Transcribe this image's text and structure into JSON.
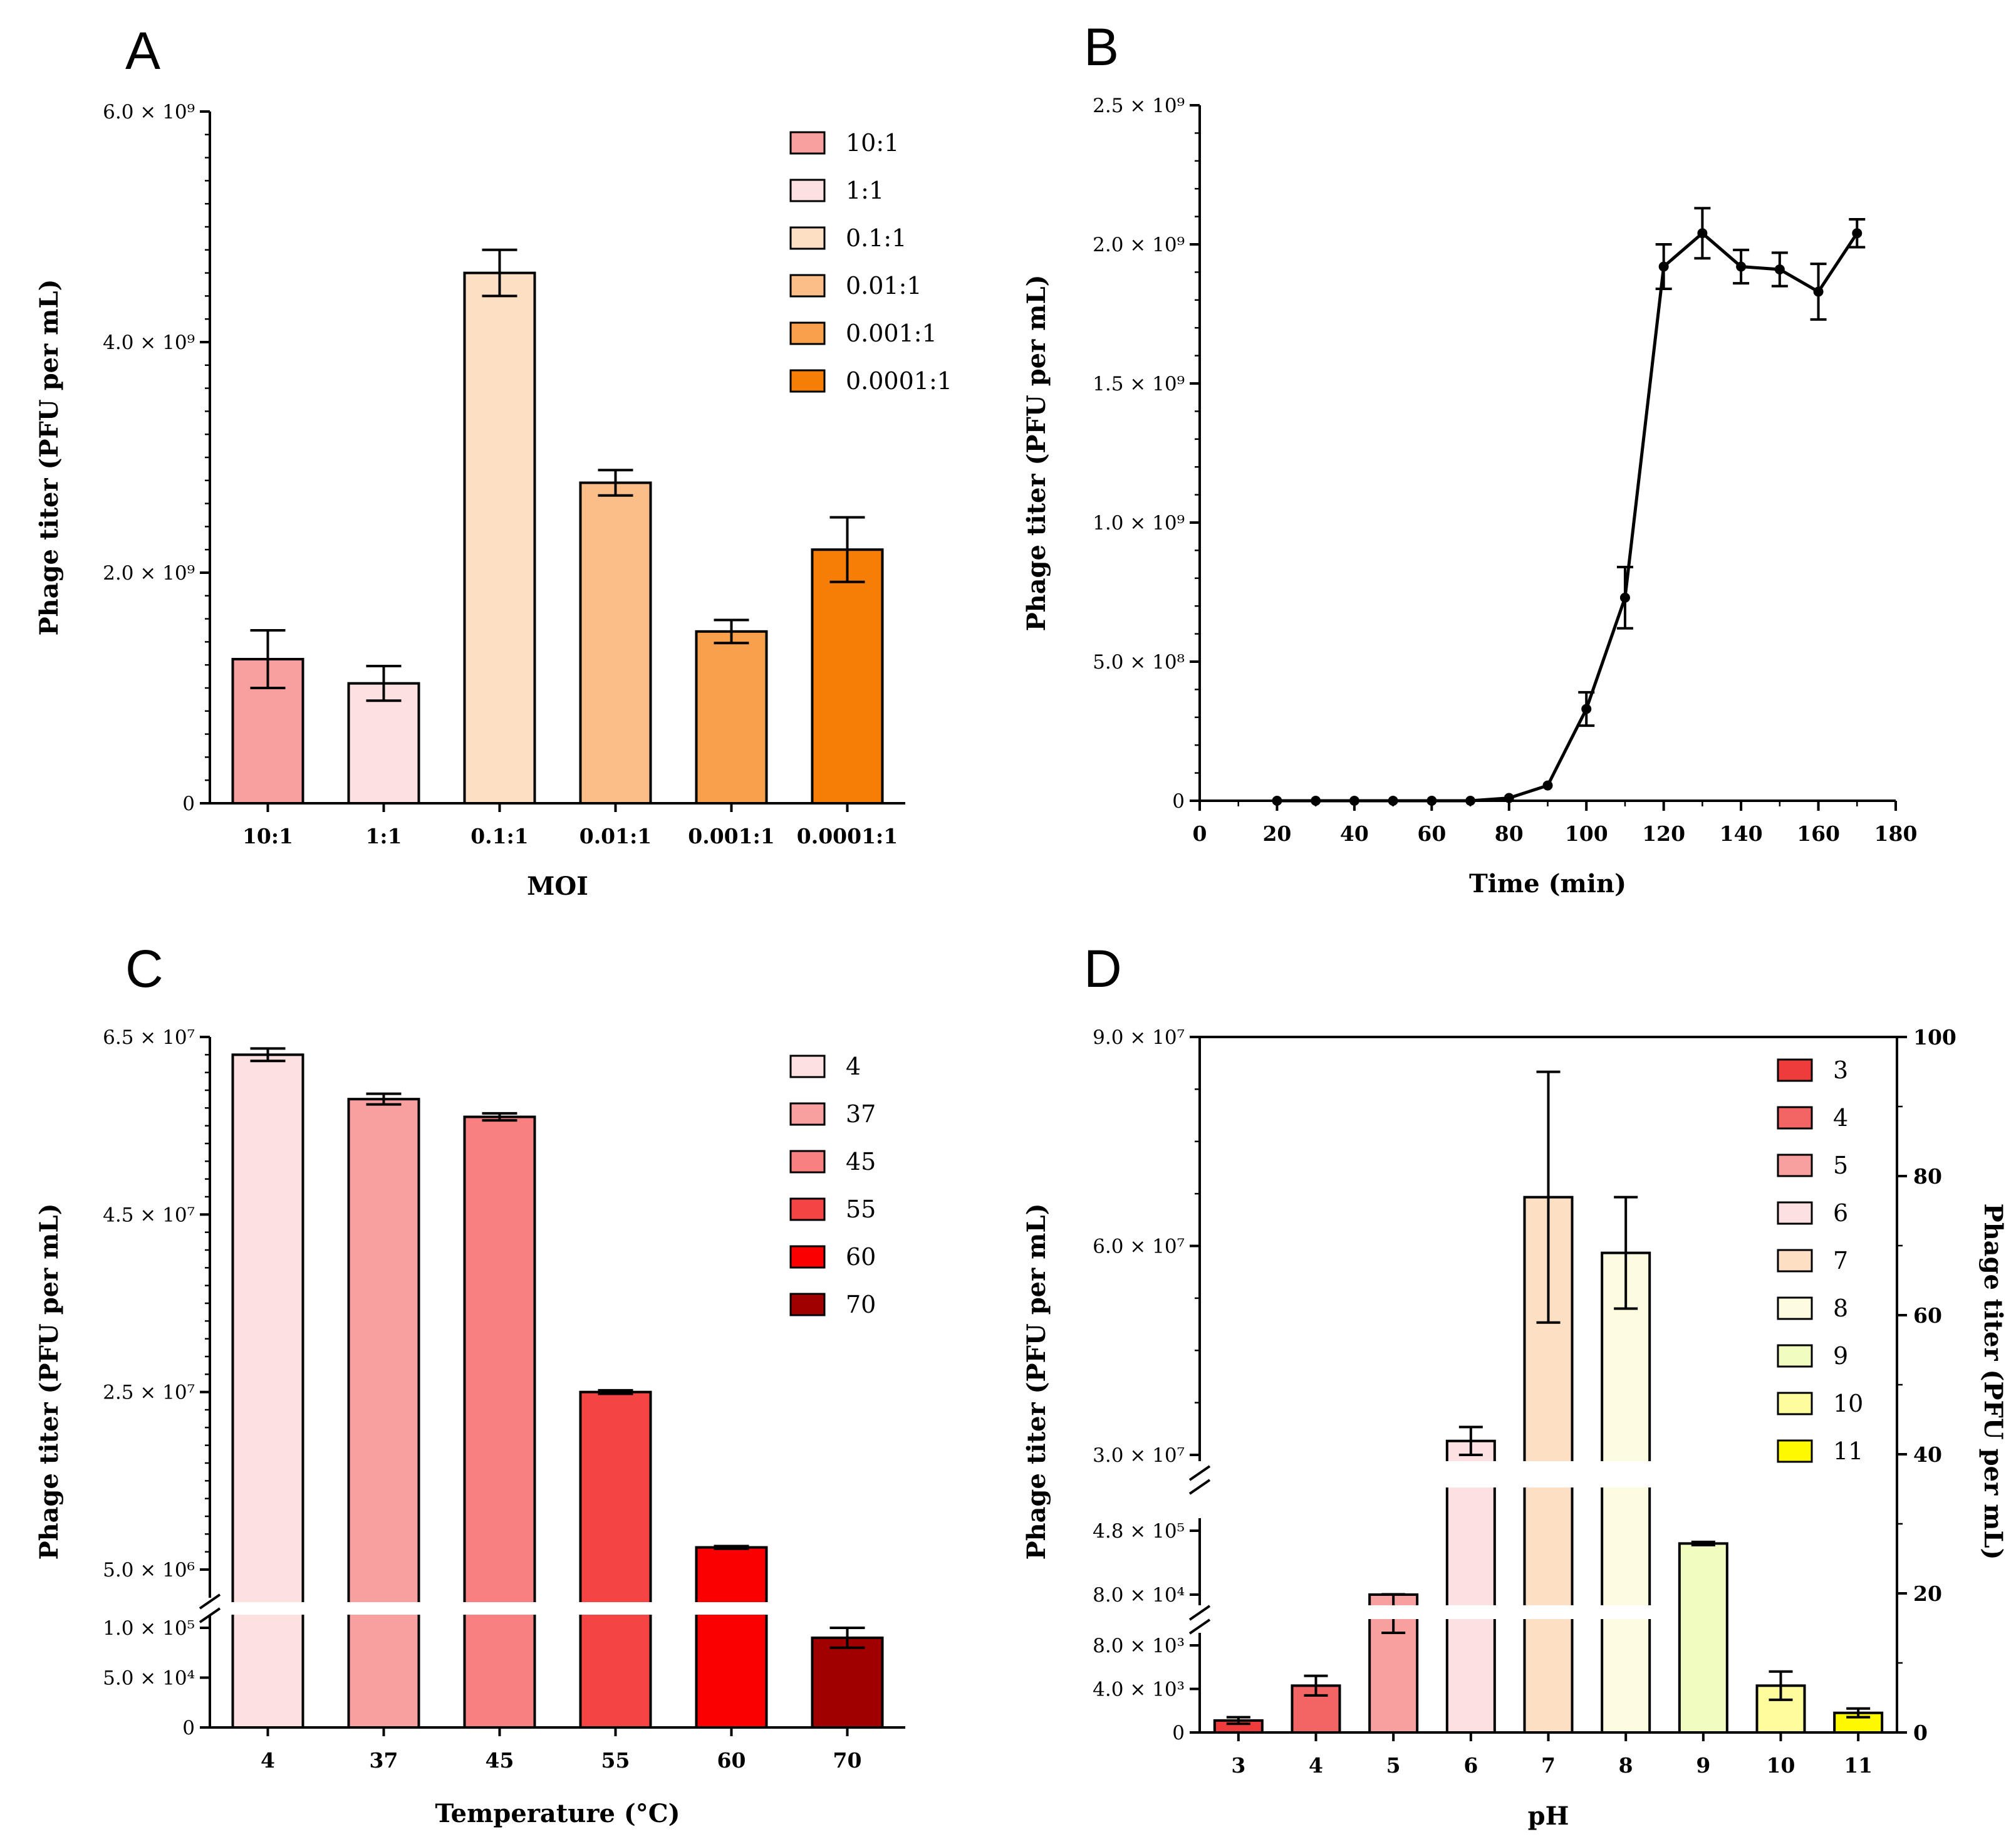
{
  "figure": {
    "panels": [
      "A",
      "B",
      "C",
      "D"
    ]
  },
  "chart_data": [
    {
      "id": "A",
      "type": "bar",
      "xlabel": "MOI",
      "ylabel": "Phage titer (PFU per mL)",
      "categories": [
        "10:1",
        "1:1",
        "0.1:1",
        "0.01:1",
        "0.001:1",
        "0.0001:1"
      ],
      "values": [
        1250000000.0,
        1040000000.0,
        4600000000.0,
        2780000000.0,
        1490000000.0,
        2200000000.0
      ],
      "errors": [
        250000000.0,
        150000000.0,
        200000000.0,
        110000000.0,
        100000000.0,
        280000000.0
      ],
      "colors": [
        "#F8A0A0",
        "#FDE0E0",
        "#FDE0C4",
        "#FBBE88",
        "#F9A04C",
        "#F77E06"
      ],
      "ylim": [
        0,
        6000000000.0
      ],
      "yticks": [
        0,
        2000000000.0,
        4000000000.0,
        6000000000.0
      ],
      "ytick_labels": [
        "0",
        "2.0 × 10⁹",
        "4.0 × 10⁹",
        "6.0 × 10⁹"
      ],
      "legend": [
        "10:1",
        "1:1",
        "0.1:1",
        "0.01:1",
        "0.001:1",
        "0.0001:1"
      ]
    },
    {
      "id": "B",
      "type": "line",
      "xlabel": "Time (min)",
      "ylabel": "Phage titer (PFU per mL)",
      "x": [
        20,
        30,
        40,
        50,
        60,
        70,
        80,
        90,
        100,
        110,
        120,
        130,
        140,
        150,
        160,
        170
      ],
      "y": [
        0,
        0,
        0,
        0,
        0,
        0,
        10000000.0,
        55000000.0,
        330000000.0,
        730000000.0,
        1920000000.0,
        2040000000.0,
        1920000000.0,
        1910000000.0,
        1830000000.0,
        2040000000.0
      ],
      "errors": [
        0,
        0,
        0,
        0,
        0,
        0,
        0,
        0,
        60000000.0,
        110000000.0,
        80000000.0,
        90000000.0,
        60000000.0,
        60000000.0,
        100000000.0,
        50000000.0
      ],
      "xlim": [
        0,
        180
      ],
      "xticks": [
        0,
        20,
        40,
        60,
        80,
        100,
        120,
        140,
        160,
        180
      ],
      "ylim": [
        0,
        2500000000.0
      ],
      "yticks": [
        0,
        500000000.0,
        1000000000.0,
        1500000000.0,
        2000000000.0,
        2500000000.0
      ],
      "ytick_labels": [
        "0",
        "5.0 × 10⁸",
        "1.0 × 10⁹",
        "1.5 × 10⁹",
        "2.0 × 10⁹",
        "2.5 × 10⁹"
      ]
    },
    {
      "id": "C",
      "type": "bar",
      "xlabel": "Temperature (°C)",
      "ylabel": "Phage titer (PFU per mL)",
      "categories": [
        "4",
        "37",
        "45",
        "55",
        "60",
        "70"
      ],
      "values": [
        63000000.0,
        58000000.0,
        56000000.0,
        25000000.0,
        7500000.0,
        90000.0
      ],
      "errors": [
        700000.0,
        600000.0,
        400000.0,
        200000.0,
        150000.0,
        10000.0
      ],
      "colors": [
        "#FDE0E0",
        "#F8A0A0",
        "#F88080",
        "#F54444",
        "#FA0000",
        "#A00000"
      ],
      "axis_break": true,
      "ylim_lower": [
        0,
        100000.0
      ],
      "ylim_upper": [
        5000000.0,
        65000000.0
      ],
      "yticks_lower": [
        0,
        50000.0,
        100000.0
      ],
      "yticks_upper": [
        5000000.0,
        25000000.0,
        45000000.0,
        65000000.0
      ],
      "ytick_labels_lower": [
        "0",
        "5.0 × 10⁴",
        "1.0 × 10⁵"
      ],
      "ytick_labels_upper": [
        "5.0 × 10⁶",
        "2.5 × 10⁷",
        "4.5 × 10⁷",
        "6.5 × 10⁷"
      ],
      "legend": [
        "4",
        "37",
        "45",
        "55",
        "60",
        "70"
      ]
    },
    {
      "id": "D",
      "type": "bar",
      "xlabel": "pH",
      "ylabel": "Phage titer (PFU per mL)",
      "y2label": "Phage titer (PFU per mL)",
      "categories": [
        "3",
        "4",
        "5",
        "6",
        "7",
        "8",
        "9",
        "10",
        "11"
      ],
      "values": [
        1100.0,
        4300.0,
        80000.0,
        32000000.0,
        67000000.0,
        59000000.0,
        400000.0,
        4300.0,
        1800.0
      ],
      "errors": [
        300.0,
        900.0,
        2000.0,
        2000000.0,
        18000000.0,
        8000000.0,
        10000.0,
        1300.0,
        400.0
      ],
      "colors": [
        "#EE3B3B",
        "#F36565",
        "#F8A0A0",
        "#FDE0E0",
        "#FDE0C4",
        "#FEFCE0",
        "#F1FCC0",
        "#FEFC9C",
        "#FEF800"
      ],
      "axis_break": true,
      "ylim_segment1": [
        0,
        8000.0
      ],
      "ylim_segment2": [
        80000.0,
        480000.0
      ],
      "ylim_segment3": [
        30000000.0,
        90000000.0
      ],
      "yticks_labels_left": [
        "0",
        "4.0 × 10³",
        "8.0 × 10³",
        "8.0 × 10⁴",
        "4.8 × 10⁵",
        "3.0 × 10⁷",
        "6.0 × 10⁷",
        "9.0 × 10⁷"
      ],
      "y2lim": [
        0,
        100
      ],
      "y2ticks": [
        "0",
        "20",
        "40",
        "60",
        "80",
        "100"
      ],
      "legend": [
        "3",
        "4",
        "5",
        "6",
        "7",
        "8",
        "9",
        "10",
        "11"
      ]
    }
  ]
}
